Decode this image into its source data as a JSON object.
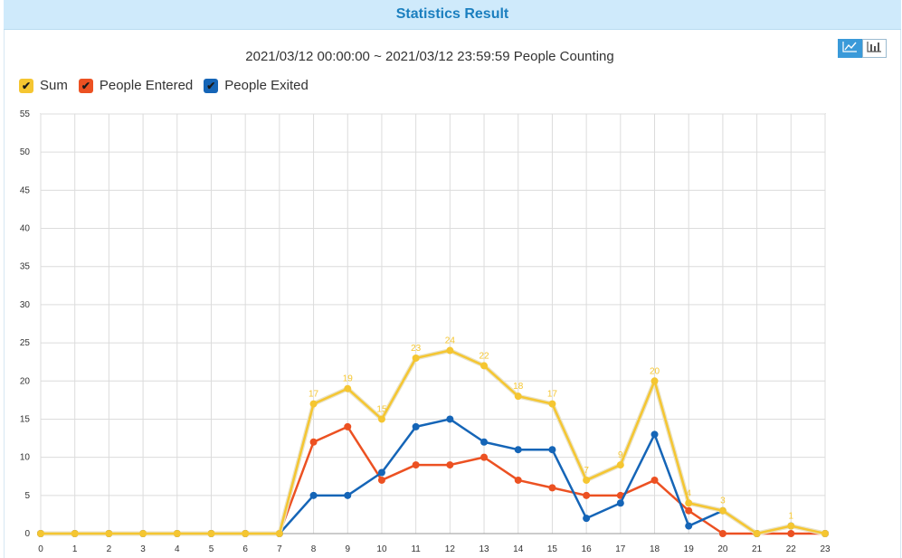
{
  "header": {
    "title": "Statistics Result"
  },
  "toolbar": {
    "line_view_icon": "line-chart-icon",
    "bar_view_icon": "bar-chart-icon"
  },
  "chart_data": {
    "type": "line",
    "title": "2021/03/12 00:00:00 ~ 2021/03/12 23:59:59 People Counting",
    "xlabel": "",
    "ylabel": "",
    "x": [
      0,
      1,
      2,
      3,
      4,
      5,
      6,
      7,
      8,
      9,
      10,
      11,
      12,
      13,
      14,
      15,
      16,
      17,
      18,
      19,
      20,
      21,
      22,
      23
    ],
    "ylim": [
      0,
      55
    ],
    "yticks": [
      0,
      5,
      10,
      15,
      20,
      25,
      30,
      35,
      40,
      45,
      50,
      55
    ],
    "grid": true,
    "legend_position": "top-left",
    "series": [
      {
        "name": "Sum",
        "color": "#f5c631",
        "values": [
          0,
          0,
          0,
          0,
          0,
          0,
          0,
          0,
          17,
          19,
          15,
          23,
          24,
          22,
          18,
          17,
          7,
          9,
          20,
          4,
          3,
          0,
          1,
          0
        ],
        "data_labels": [
          "",
          "",
          "",
          "",
          "",
          "",
          "",
          "",
          "17",
          "19",
          "15",
          "23",
          "24",
          "22",
          "18",
          "17",
          "7",
          "9",
          "20",
          "4",
          "3",
          "",
          "1",
          ""
        ]
      },
      {
        "name": "People Entered",
        "color": "#ec5122",
        "values": [
          0,
          0,
          0,
          0,
          0,
          0,
          0,
          0,
          12,
          14,
          7,
          9,
          9,
          10,
          7,
          6,
          5,
          5,
          7,
          3,
          0,
          0,
          0,
          0
        ]
      },
      {
        "name": "People Exited",
        "color": "#1565b7",
        "values": [
          0,
          0,
          0,
          0,
          0,
          0,
          0,
          0,
          5,
          5,
          8,
          14,
          15,
          12,
          11,
          11,
          2,
          4,
          13,
          1,
          3,
          0,
          1,
          0
        ]
      }
    ]
  }
}
